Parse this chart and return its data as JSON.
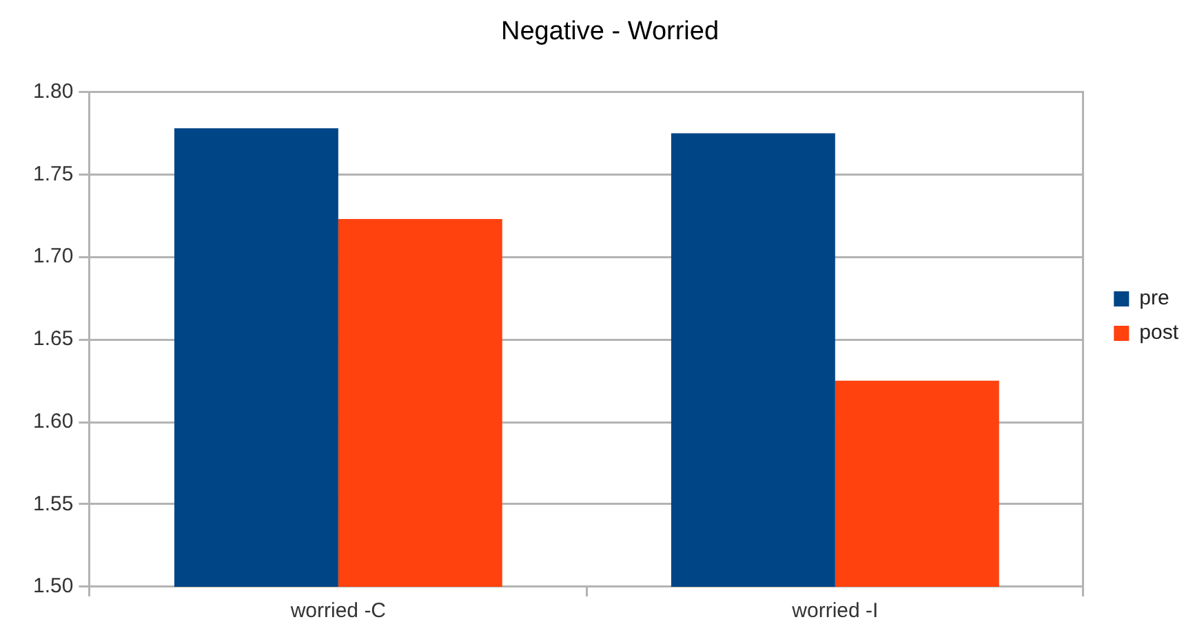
{
  "chart_data": {
    "type": "bar",
    "title": "Negative - Worried",
    "categories": [
      "worried -C",
      "worried -I"
    ],
    "series": [
      {
        "name": "pre",
        "color": "#004586",
        "values": [
          1.778,
          1.775
        ]
      },
      {
        "name": "post",
        "color": "#ff420e",
        "values": [
          1.723,
          1.625
        ]
      }
    ],
    "ylim": [
      1.5,
      1.8
    ],
    "yticks": [
      {
        "value": 1.5,
        "label": "1.50"
      },
      {
        "value": 1.55,
        "label": "1.55"
      },
      {
        "value": 1.6,
        "label": "1.60"
      },
      {
        "value": 1.65,
        "label": "1.65"
      },
      {
        "value": 1.7,
        "label": "1.70"
      },
      {
        "value": 1.75,
        "label": "1.75"
      },
      {
        "value": 1.8,
        "label": "1.80"
      }
    ],
    "grid": "y",
    "legend": "right"
  }
}
